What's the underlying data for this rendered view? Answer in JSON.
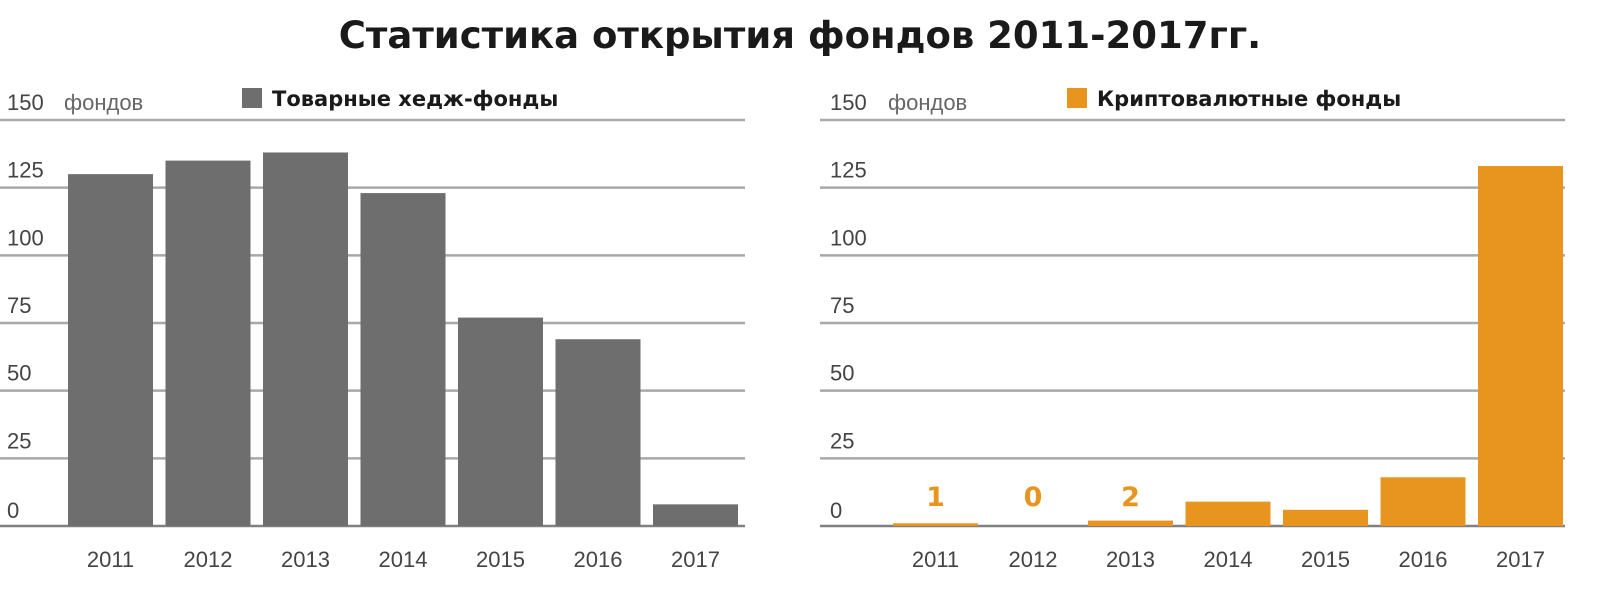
{
  "title": "Статистика открытия фондов 2011-2017гг.",
  "y_unit": "фондов",
  "colors": {
    "grid": "#a8a8a8",
    "axis": "#808080",
    "tick_text": "#444444"
  },
  "chart_data": [
    {
      "type": "bar",
      "legend": "Товарные хедж-фонды",
      "color": "#6e6e6e",
      "categories": [
        "2011",
        "2012",
        "2013",
        "2014",
        "2015",
        "2016",
        "2017"
      ],
      "values": [
        130,
        135,
        138,
        123,
        77,
        69,
        8
      ],
      "data_labels": [],
      "ylim": [
        0,
        150
      ],
      "yticks": [
        0,
        25,
        50,
        75,
        100,
        125,
        150
      ],
      "grid": true,
      "legend_position": "top"
    },
    {
      "type": "bar",
      "legend": "Криптовалютные фонды",
      "color": "#e8951f",
      "categories": [
        "2011",
        "2012",
        "2013",
        "2014",
        "2015",
        "2016",
        "2017"
      ],
      "values": [
        1,
        0,
        2,
        9,
        6,
        18,
        133
      ],
      "data_labels": [
        "1",
        "0",
        "2",
        null,
        null,
        null,
        null
      ],
      "ylim": [
        0,
        150
      ],
      "yticks": [
        0,
        25,
        50,
        75,
        100,
        125,
        150
      ],
      "grid": true,
      "legend_position": "top"
    }
  ]
}
